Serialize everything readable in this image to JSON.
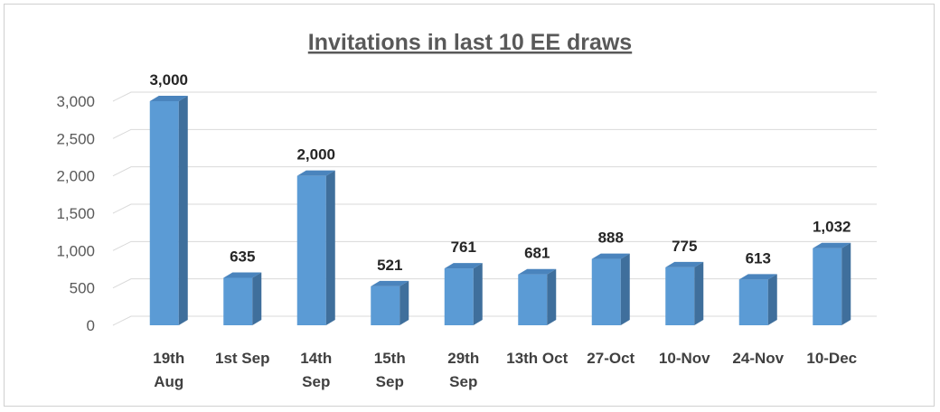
{
  "chart_data": {
    "type": "bar",
    "title": "Invitations in last 10 EE draws",
    "xlabel": "",
    "ylabel": "",
    "categories": [
      [
        "19th",
        "Aug"
      ],
      [
        "1st Sep"
      ],
      [
        "14th",
        "Sep"
      ],
      [
        "15th",
        "Sep"
      ],
      [
        "29th",
        "Sep"
      ],
      [
        "13th Oct"
      ],
      [
        "27-Oct"
      ],
      [
        "10-Nov"
      ],
      [
        "24-Nov"
      ],
      [
        "10-Dec"
      ]
    ],
    "values": [
      3000,
      635,
      2000,
      521,
      761,
      681,
      888,
      775,
      613,
      1032
    ],
    "data_labels": [
      "3,000",
      "635",
      "2,000",
      "521",
      "761",
      "681",
      "888",
      "775",
      "613",
      "1,032"
    ],
    "ylim": [
      0,
      3000
    ],
    "yticks": [
      0,
      500,
      1000,
      1500,
      2000,
      2500,
      3000
    ],
    "ytick_labels": [
      "0",
      "500",
      "1,000",
      "1,500",
      "2,000",
      "2,500",
      "3,000"
    ],
    "grid": true,
    "legend": "none",
    "colors": {
      "bar_front": "#5b9bd5",
      "bar_side": "#3f6f9c",
      "bar_top": "#4a84bd",
      "grid": "#d9d9d9"
    }
  }
}
